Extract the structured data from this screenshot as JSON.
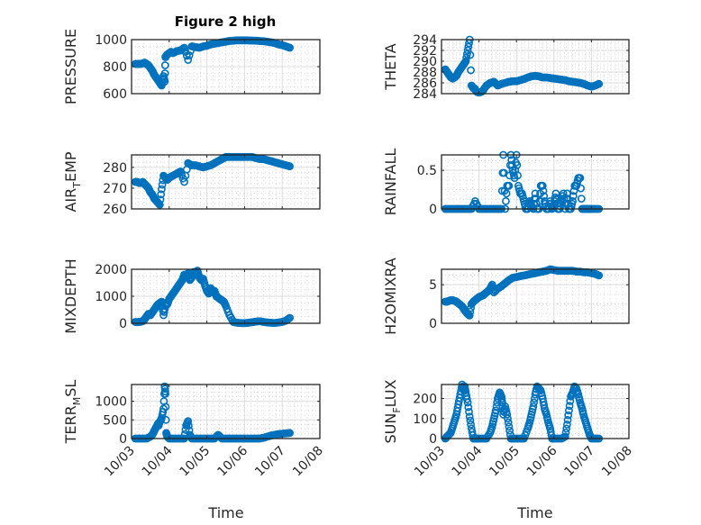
{
  "chart_data": {
    "type": "scatter",
    "title": "Figure 2 high",
    "marker": "open-circle",
    "color": "#0072BD",
    "grid": true,
    "minor_grid": true,
    "x_axis": {
      "label": "Time",
      "range_days": [
        0,
        5
      ],
      "tick_labels": [
        "10/03",
        "10/04",
        "10/05",
        "10/06",
        "10/07",
        "10/08"
      ]
    },
    "subplots": [
      {
        "id": "pressure",
        "ylabel": "PRESSURE",
        "ylabel_sub": "",
        "ylim": [
          600,
          1000
        ],
        "yticks": [
          600,
          800,
          1000
        ],
        "show_title": true,
        "show_xticks": false,
        "x": [
          0.1,
          0.15,
          0.2,
          0.25,
          0.3,
          0.35,
          0.4,
          0.45,
          0.5,
          0.55,
          0.6,
          0.65,
          0.7,
          0.75,
          0.8,
          0.85,
          0.88,
          0.9,
          0.92,
          0.95,
          1.0,
          1.05,
          1.1,
          1.2,
          1.3,
          1.4,
          1.5,
          1.6,
          1.7,
          1.8,
          1.9,
          2.0,
          2.1,
          2.2,
          2.3,
          2.4,
          2.5,
          2.6,
          2.7,
          2.8,
          2.9,
          3.0,
          3.1,
          3.2,
          3.3,
          3.4,
          3.5,
          3.6,
          3.7,
          3.8,
          3.9,
          4.0,
          4.1,
          4.2
        ],
        "y": [
          820,
          820,
          820,
          820,
          825,
          830,
          820,
          810,
          790,
          770,
          740,
          720,
          700,
          680,
          660,
          730,
          690,
          870,
          880,
          890,
          900,
          910,
          900,
          915,
          920,
          940,
          850,
          950,
          945,
          940,
          950,
          955,
          965,
          970,
          975,
          980,
          985,
          990,
          992,
          995,
          995,
          995,
          994,
          993,
          992,
          990,
          988,
          985,
          980,
          975,
          965,
          960,
          950,
          940
        ]
      },
      {
        "id": "theta",
        "ylabel": "THETA",
        "ylabel_sub": "",
        "ylim": [
          284,
          294
        ],
        "yticks": [
          284,
          286,
          288,
          290,
          292,
          294
        ],
        "show_title": false,
        "show_xticks": false,
        "x": [
          0.1,
          0.15,
          0.2,
          0.25,
          0.3,
          0.35,
          0.4,
          0.45,
          0.5,
          0.55,
          0.6,
          0.65,
          0.7,
          0.75,
          0.8,
          0.85,
          0.88,
          0.92,
          0.95,
          1.0,
          1.05,
          1.1,
          1.2,
          1.3,
          1.4,
          1.5,
          1.6,
          1.7,
          1.8,
          1.9,
          2.0,
          2.1,
          2.2,
          2.3,
          2.4,
          2.5,
          2.6,
          2.7,
          2.8,
          2.9,
          3.0,
          3.1,
          3.2,
          3.3,
          3.4,
          3.5,
          3.6,
          3.7,
          3.8,
          3.9,
          4.0,
          4.1,
          4.2
        ],
        "y": [
          288.5,
          288,
          287.5,
          287,
          286.8,
          287,
          287.3,
          288,
          288.5,
          289,
          289.5,
          290,
          292,
          294,
          285.5,
          285,
          285,
          284.5,
          284.3,
          284.2,
          284.3,
          284.5,
          285.5,
          286,
          286.2,
          285.5,
          285.8,
          286,
          286.2,
          286.3,
          286.3,
          286.5,
          286.7,
          287,
          287.2,
          287.3,
          287.2,
          287,
          287,
          286.9,
          286.8,
          286.7,
          286.6,
          286.5,
          286.3,
          286.2,
          286.1,
          286,
          285.8,
          285.5,
          285.3,
          285.5,
          285.8
        ]
      },
      {
        "id": "air_temp",
        "ylabel": "AIR",
        "ylabel_sub": "T",
        "ylabel_rest": "EMP",
        "ylim": [
          260,
          286
        ],
        "yticks": [
          260,
          270,
          280
        ],
        "show_title": false,
        "show_xticks": false,
        "x": [
          0.1,
          0.15,
          0.2,
          0.25,
          0.3,
          0.35,
          0.4,
          0.45,
          0.5,
          0.55,
          0.6,
          0.65,
          0.7,
          0.75,
          0.8,
          0.85,
          0.9,
          0.95,
          1.0,
          1.05,
          1.1,
          1.2,
          1.3,
          1.4,
          1.5,
          1.6,
          1.7,
          1.8,
          1.9,
          2.0,
          2.1,
          2.2,
          2.3,
          2.4,
          2.5,
          2.6,
          2.7,
          2.8,
          2.9,
          3.0,
          3.1,
          3.2,
          3.3,
          3.4,
          3.5,
          3.6,
          3.7,
          3.8,
          3.9,
          4.0,
          4.1,
          4.2
        ],
        "y": [
          273,
          273,
          272.5,
          272.5,
          273,
          272,
          271,
          270,
          268,
          267,
          265,
          264,
          263,
          262,
          269.5,
          276,
          275,
          274,
          275,
          275.5,
          276,
          277,
          278,
          273,
          282,
          281,
          281,
          280.5,
          280,
          280.5,
          281,
          282,
          283,
          284,
          285,
          285,
          285,
          285,
          285,
          285,
          285,
          285,
          284.5,
          284,
          284,
          283.5,
          283,
          282.5,
          282,
          281.5,
          281,
          280.5
        ]
      },
      {
        "id": "rainfall",
        "ylabel": "RAINFALL",
        "ylabel_sub": "",
        "ylim": [
          0,
          0.7
        ],
        "yticks": [
          0,
          0.5
        ],
        "show_title": false,
        "show_xticks": false,
        "x": [
          0.1,
          0.2,
          0.3,
          0.4,
          0.5,
          0.6,
          0.7,
          0.8,
          0.9,
          1.0,
          1.1,
          1.2,
          1.3,
          1.4,
          1.5,
          1.6,
          1.65,
          1.7,
          1.75,
          1.8,
          1.85,
          1.9,
          1.95,
          2.0,
          2.05,
          2.1,
          2.15,
          2.2,
          2.25,
          2.3,
          2.35,
          2.4,
          2.45,
          2.5,
          2.55,
          2.6,
          2.65,
          2.7,
          2.75,
          2.8,
          2.85,
          2.9,
          2.95,
          3.0,
          3.05,
          3.1,
          3.15,
          3.2,
          3.25,
          3.3,
          3.35,
          3.4,
          3.45,
          3.5,
          3.55,
          3.6,
          3.65,
          3.7,
          3.75,
          3.8,
          3.85,
          3.9,
          3.95,
          4.0,
          4.1,
          4.2
        ],
        "y": [
          0,
          0,
          0,
          0,
          0,
          0,
          0,
          0,
          0.1,
          0,
          0,
          0,
          0,
          0,
          0,
          0,
          0.7,
          0,
          0.3,
          0.3,
          0.7,
          0.5,
          0.4,
          0.7,
          0.3,
          0.2,
          0.2,
          0.1,
          0,
          0,
          0.1,
          0.05,
          0,
          0.2,
          0,
          0,
          0.3,
          0.3,
          0.1,
          0,
          0,
          0.1,
          0,
          0.05,
          0.2,
          0,
          0,
          0.1,
          0.2,
          0,
          0.2,
          0,
          0,
          0.1,
          0.3,
          0.3,
          0.4,
          0.4,
          0,
          0,
          0,
          0,
          0,
          0,
          0,
          0
        ]
      },
      {
        "id": "mixdepth",
        "ylabel": "MIXDEPTH",
        "ylabel_sub": "",
        "ylim": [
          0,
          2000
        ],
        "yticks": [
          0,
          1000,
          2000
        ],
        "show_title": false,
        "show_xticks": false,
        "x": [
          0.1,
          0.15,
          0.2,
          0.25,
          0.3,
          0.35,
          0.4,
          0.45,
          0.5,
          0.55,
          0.6,
          0.65,
          0.7,
          0.75,
          0.8,
          0.85,
          0.9,
          0.95,
          1.0,
          1.05,
          1.1,
          1.15,
          1.2,
          1.25,
          1.3,
          1.35,
          1.4,
          1.45,
          1.5,
          1.55,
          1.6,
          1.65,
          1.7,
          1.75,
          1.8,
          1.85,
          1.9,
          1.95,
          2.0,
          2.05,
          2.1,
          2.15,
          2.2,
          2.25,
          2.3,
          2.35,
          2.4,
          2.45,
          2.5,
          2.6,
          2.7,
          2.8,
          2.9,
          3.0,
          3.1,
          3.2,
          3.3,
          3.4,
          3.5,
          3.6,
          3.7,
          3.8,
          3.9,
          4.0,
          4.1,
          4.2
        ],
        "y": [
          50,
          40,
          50,
          60,
          80,
          150,
          250,
          350,
          300,
          400,
          500,
          600,
          700,
          750,
          800,
          300,
          650,
          700,
          900,
          1000,
          1100,
          1200,
          1300,
          1400,
          1500,
          1600,
          1800,
          1750,
          1850,
          1600,
          1700,
          1900,
          1800,
          1950,
          1700,
          1600,
          1650,
          1400,
          1200,
          1100,
          1300,
          1150,
          1200,
          1000,
          950,
          900,
          850,
          800,
          650,
          300,
          50,
          20,
          10,
          5,
          20,
          40,
          60,
          80,
          50,
          30,
          20,
          10,
          30,
          50,
          100,
          200
        ]
      },
      {
        "id": "h2omixra",
        "ylabel": "H2OMIXRA",
        "ylabel_sub": "",
        "ylim": [
          0,
          7
        ],
        "yticks": [
          0,
          5
        ],
        "show_title": false,
        "show_xticks": false,
        "x": [
          0.1,
          0.15,
          0.2,
          0.25,
          0.3,
          0.35,
          0.4,
          0.45,
          0.5,
          0.55,
          0.6,
          0.65,
          0.7,
          0.75,
          0.8,
          0.85,
          0.9,
          0.95,
          1.0,
          1.05,
          1.1,
          1.15,
          1.2,
          1.25,
          1.3,
          1.35,
          1.4,
          1.5,
          1.6,
          1.7,
          1.8,
          1.9,
          2.0,
          2.1,
          2.2,
          2.3,
          2.4,
          2.5,
          2.6,
          2.7,
          2.8,
          2.9,
          3.0,
          3.1,
          3.2,
          3.3,
          3.4,
          3.5,
          3.6,
          3.7,
          3.8,
          3.9,
          4.0,
          4.1,
          4.2
        ],
        "y": [
          2.8,
          2.8,
          2.9,
          3.0,
          3.0,
          2.9,
          2.8,
          2.6,
          2.4,
          2.2,
          1.8,
          1.5,
          1.2,
          1.0,
          2.5,
          2.8,
          3.0,
          3.2,
          3.4,
          3.5,
          3.6,
          3.8,
          4.0,
          4.2,
          4.5,
          5.0,
          4.0,
          4.5,
          4.8,
          5.2,
          5.6,
          5.9,
          6.0,
          6.1,
          6.2,
          6.3,
          6.4,
          6.5,
          6.6,
          6.7,
          6.8,
          7.0,
          6.9,
          6.8,
          6.8,
          6.8,
          6.8,
          6.8,
          6.7,
          6.7,
          6.6,
          6.6,
          6.5,
          6.4,
          6.2
        ]
      },
      {
        "id": "terr_msl",
        "ylabel": "TERR",
        "ylabel_sub": "M",
        "ylabel_rest": "SL",
        "ylim": [
          0,
          1450
        ],
        "yticks": [
          0,
          500,
          1000
        ],
        "show_title": false,
        "show_xticks": true,
        "x": [
          0.1,
          0.2,
          0.3,
          0.4,
          0.5,
          0.55,
          0.6,
          0.65,
          0.7,
          0.72,
          0.75,
          0.78,
          0.8,
          0.85,
          0.88,
          0.9,
          0.92,
          0.95,
          1.0,
          1.1,
          1.2,
          1.3,
          1.4,
          1.45,
          1.5,
          1.55,
          1.6,
          1.7,
          1.8,
          1.9,
          2.0,
          2.1,
          2.2,
          2.3,
          2.4,
          2.5,
          2.6,
          2.7,
          2.8,
          2.9,
          3.0,
          3.1,
          3.2,
          3.3,
          3.4,
          3.5,
          3.6,
          3.7,
          3.8,
          3.9,
          4.0,
          4.1,
          4.2
        ],
        "y": [
          0,
          0,
          0,
          0,
          50,
          100,
          200,
          300,
          400,
          350,
          450,
          500,
          550,
          800,
          1400,
          1200,
          150,
          50,
          0,
          0,
          0,
          0,
          0,
          350,
          470,
          100,
          0,
          0,
          0,
          0,
          0,
          0,
          0,
          100,
          0,
          0,
          0,
          0,
          0,
          0,
          0,
          0,
          0,
          0,
          0,
          20,
          50,
          80,
          100,
          120,
          130,
          140,
          150
        ]
      },
      {
        "id": "sun_flux",
        "ylabel": "SUN",
        "ylabel_sub": "F",
        "ylabel_rest": "LUX",
        "ylim": [
          0,
          270
        ],
        "yticks": [
          0,
          100,
          200
        ],
        "show_title": false,
        "show_xticks": true,
        "x": [
          0.1,
          0.15,
          0.2,
          0.25,
          0.3,
          0.35,
          0.4,
          0.45,
          0.5,
          0.55,
          0.6,
          0.62,
          0.65,
          0.7,
          0.75,
          0.8,
          0.85,
          0.9,
          0.95,
          1.0,
          1.1,
          1.2,
          1.3,
          1.35,
          1.4,
          1.45,
          1.5,
          1.55,
          1.6,
          1.62,
          1.65,
          1.7,
          1.75,
          1.8,
          1.85,
          1.9,
          2.0,
          2.1,
          2.2,
          2.3,
          2.35,
          2.4,
          2.45,
          2.5,
          2.55,
          2.6,
          2.65,
          2.7,
          2.75,
          2.8,
          2.85,
          2.9,
          2.95,
          3.0,
          3.1,
          3.2,
          3.3,
          3.35,
          3.4,
          3.45,
          3.5,
          3.55,
          3.6,
          3.65,
          3.7,
          3.75,
          3.8,
          3.85,
          3.9,
          3.95,
          4.0,
          4.1,
          4.2
        ],
        "y": [
          0,
          10,
          20,
          30,
          60,
          90,
          120,
          170,
          220,
          270,
          240,
          260,
          230,
          180,
          110,
          50,
          0,
          0,
          0,
          0,
          0,
          0,
          30,
          60,
          100,
          140,
          200,
          230,
          210,
          180,
          120,
          160,
          120,
          60,
          0,
          0,
          0,
          0,
          0,
          50,
          80,
          120,
          160,
          220,
          260,
          250,
          240,
          200,
          150,
          120,
          80,
          50,
          0,
          0,
          0,
          0,
          10,
          70,
          140,
          210,
          230,
          260,
          250,
          220,
          180,
          150,
          110,
          80,
          50,
          20,
          0,
          0,
          0
        ]
      }
    ]
  }
}
